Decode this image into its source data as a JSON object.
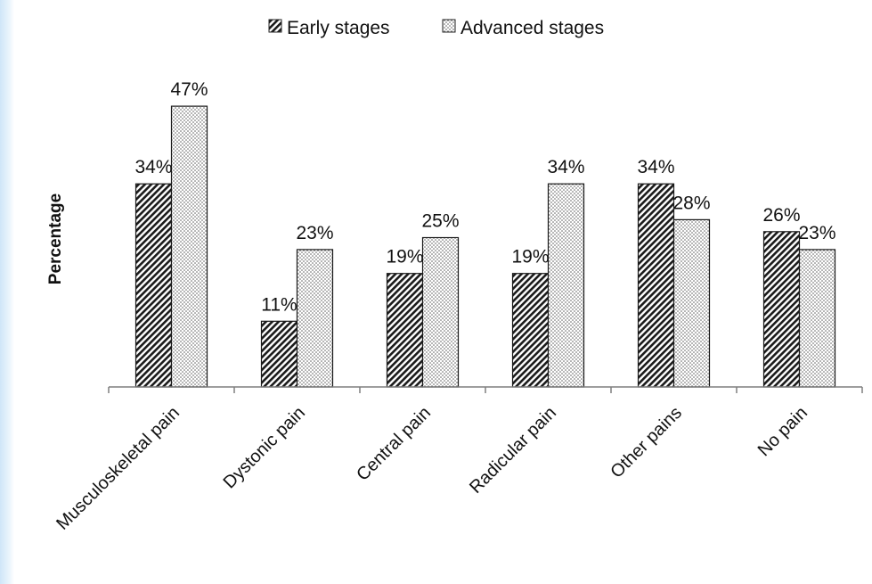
{
  "chart_data": {
    "type": "bar",
    "title": "",
    "xlabel": "",
    "ylabel": "Percentage",
    "ylim": [
      0,
      50
    ],
    "grid": false,
    "legend_position": "top-center",
    "categories": [
      "Musculoskeletal pain",
      "Dystonic pain",
      "Central pain",
      "Radicular pain",
      "Other pains",
      "No pain"
    ],
    "series": [
      {
        "name": "Early stages",
        "values": [
          34,
          11,
          19,
          19,
          34,
          26
        ],
        "labels": [
          "34%",
          "11%",
          "19%",
          "19%",
          "34%",
          "26%"
        ],
        "pattern": "diagonal-hatch",
        "color": "#222222"
      },
      {
        "name": "Advanced stages",
        "values": [
          47,
          23,
          25,
          34,
          28,
          23
        ],
        "labels": [
          "47%",
          "23%",
          "25%",
          "34%",
          "28%",
          "23%"
        ],
        "pattern": "dots",
        "color": "#444444"
      }
    ]
  }
}
